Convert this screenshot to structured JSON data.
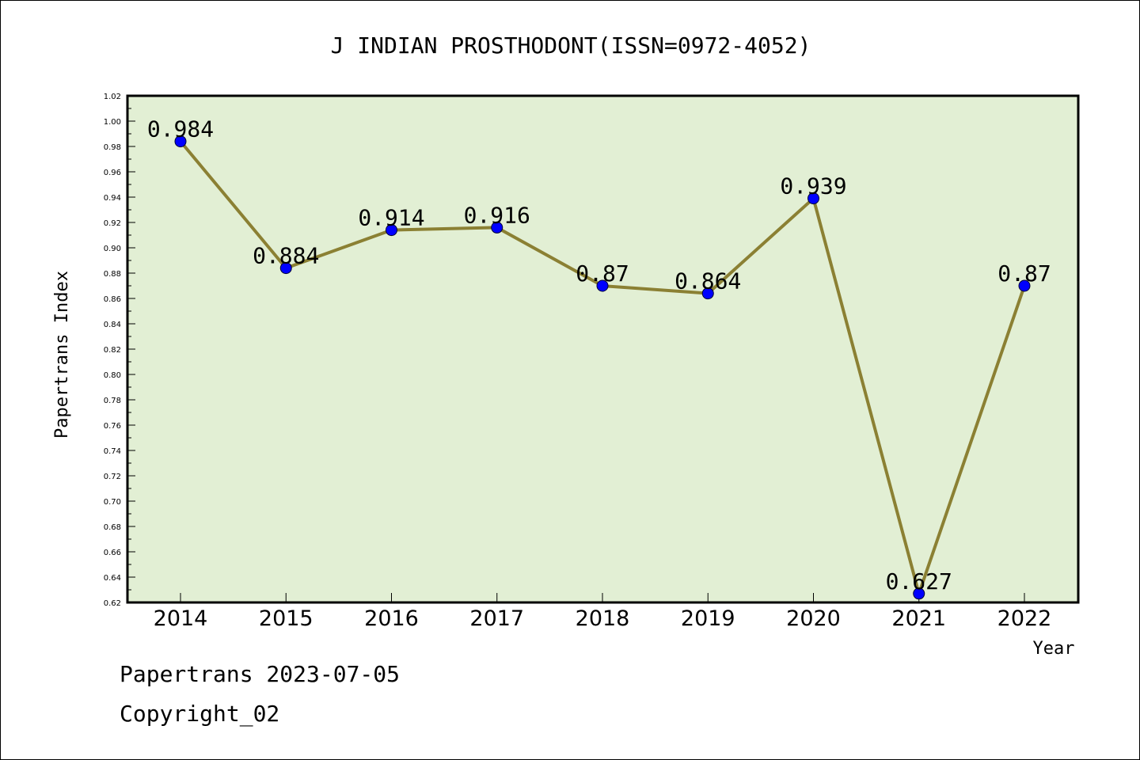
{
  "chart_data": {
    "type": "line",
    "title": "J INDIAN PROSTHODONT(ISSN=0972-4052)",
    "xlabel": "Year",
    "ylabel": "Papertrans Index",
    "categories": [
      "2014",
      "2015",
      "2016",
      "2017",
      "2018",
      "2019",
      "2020",
      "2021",
      "2022"
    ],
    "values": [
      0.984,
      0.884,
      0.914,
      0.916,
      0.87,
      0.864,
      0.939,
      0.627,
      0.87
    ],
    "data_labels": [
      "0.984",
      "0.884",
      "0.914",
      "0.916",
      "0.87",
      "0.864",
      "0.939",
      "0.627",
      "0.87"
    ],
    "ylim": [
      0.62,
      1.02
    ],
    "yticks": [
      "0.62",
      "0.64",
      "0.66",
      "0.68",
      "0.70",
      "0.72",
      "0.74",
      "0.76",
      "0.78",
      "0.80",
      "0.82",
      "0.84",
      "0.86",
      "0.88",
      "0.90",
      "0.92",
      "0.94",
      "0.96",
      "0.98",
      "1.00",
      "1.02"
    ],
    "grid": false,
    "colors": {
      "plot_background": "#e2efd4",
      "line": "#8b8033",
      "marker": "#0000ff"
    }
  },
  "footer": {
    "line1": "Papertrans 2023-07-05",
    "line2": "Copyright_02"
  }
}
